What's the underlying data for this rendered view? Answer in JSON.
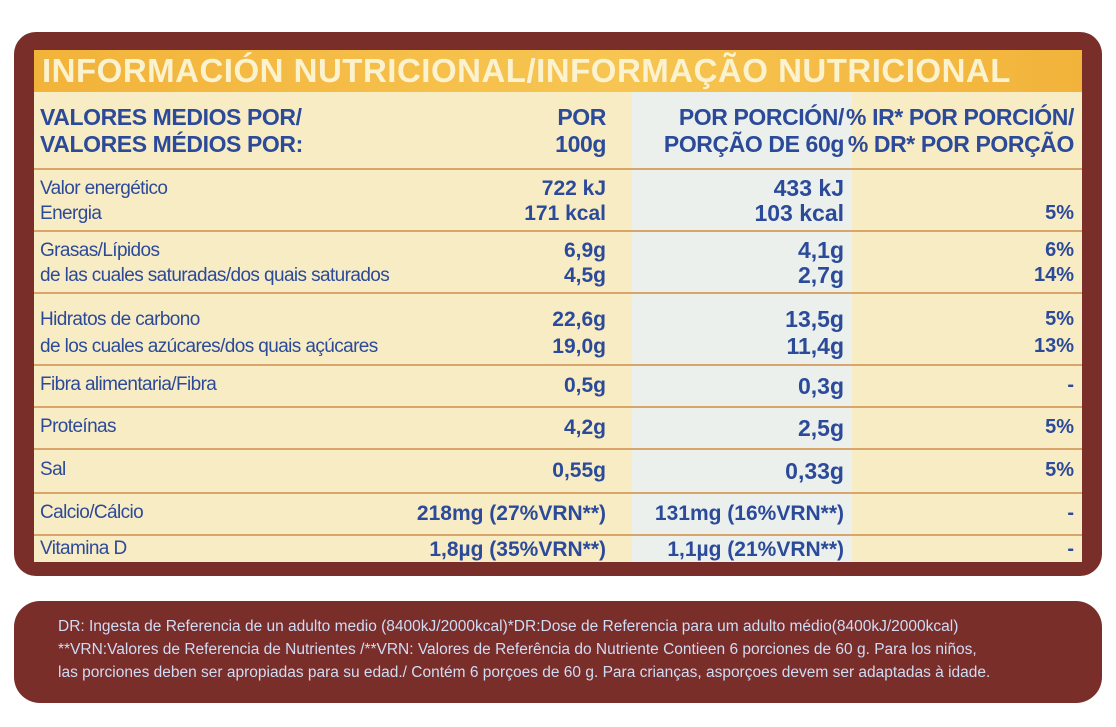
{
  "title": "INFORMACIÓN NUTRICIONAL/INFORMAÇÃO NUTRICIONAL",
  "headers": {
    "name_line1": "VALORES MEDIOS POR/",
    "name_line2": "VALORES MÉDIOS POR:",
    "per100_line1": "POR",
    "per100_line2": "100g",
    "portion_line1": "POR PORCIÓN/",
    "portion_line2": "PORÇÃO DE 60g",
    "ir_line1": "% IR* POR PORCIÓN/",
    "ir_line2": "% DR* POR PORÇÃO"
  },
  "rows": [
    {
      "name1": "Valor energético",
      "name2": "Energia",
      "v100_1": "722 kJ",
      "v100_2": "171 kcal",
      "vpor_1": "433 kJ",
      "vpor_2": "103 kcal",
      "ir_1": "",
      "ir_2": "5%"
    },
    {
      "name1": "Grasas/Lípidos",
      "name2": "de las cuales saturadas/dos quais saturados",
      "v100_1": "6,9g",
      "v100_2": "4,5g",
      "vpor_1": "4,1g",
      "vpor_2": "2,7g",
      "ir_1": "6%",
      "ir_2": "14%"
    },
    {
      "name1": "Hidratos de carbono",
      "name2": "de los cuales azúcares/dos quais açúcares",
      "v100_1": "22,6g",
      "v100_2": "19,0g",
      "vpor_1": "13,5g",
      "vpor_2": "11,4g",
      "ir_1": "5%",
      "ir_2": "13%"
    },
    {
      "name1": "Fibra alimentaria/Fibra",
      "v100_1": "0,5g",
      "vpor_1": "0,3g",
      "ir_1": "-"
    },
    {
      "name1": "Proteínas",
      "v100_1": "4,2g",
      "vpor_1": "2,5g",
      "ir_1": "5%"
    },
    {
      "name1": "Sal",
      "v100_1": "0,55g",
      "vpor_1": "0,33g",
      "ir_1": "5%"
    },
    {
      "name1": "Calcio/Cálcio",
      "v100_1": "218mg (27%VRN**)",
      "vpor_1": "131mg (16%VRN**)",
      "ir_1": "-"
    },
    {
      "name1": "Vitamina D",
      "v100_1": "1,8µg (35%VRN**)",
      "vpor_1": "1,1µg (21%VRN**)",
      "ir_1": "-"
    }
  ],
  "footnote": {
    "line1": "DR: Ingesta de Referencia de un adulto medio (8400kJ/2000kcal)*DR:Dose de Referencia para um adulto médio(8400kJ/2000kcal)",
    "line2": "**VRN:Valores de Referencia de Nutrientes /**VRN: Valores de Referência do Nutriente Contieen 6 porciones de 60 g. Para los niños,",
    "line3": "las porciones deben ser apropiadas para su edad./ Contém 6 porçoes de 60 g. Para crianças, asporçoes devem ser adaptadas à idade."
  },
  "colors": {
    "frame": "#7a2e2a",
    "title_bar": "#f2b33a",
    "panel": "#f8ecc4",
    "text": "#2b4a9a",
    "footnote_text": "#cfdcf6"
  }
}
